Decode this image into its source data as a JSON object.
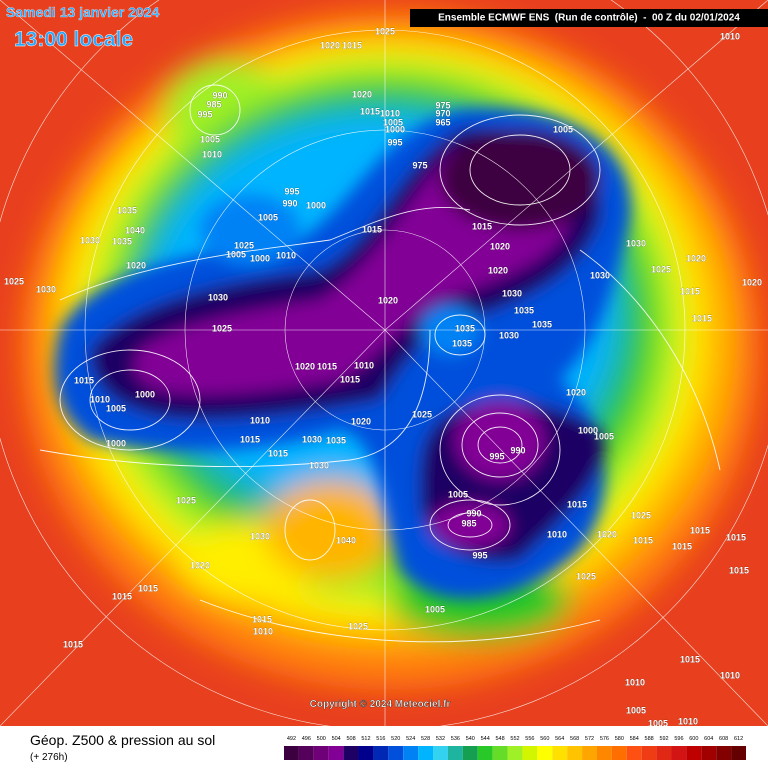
{
  "header": {
    "date": "Samedi 13 janvier 2024",
    "time": "13:00 locale",
    "model": "Ensemble ECMWF ENS  (Run de contrôle)  -  00 Z du 02/01/2024"
  },
  "copyright": "Copyright © 2024 Meteociel.fr",
  "footer": {
    "title": "Géop. Z500 & pression au sol",
    "lead": "(+ 276h)"
  },
  "legend": {
    "levels": [
      492,
      496,
      500,
      504,
      508,
      512,
      516,
      520,
      524,
      528,
      532,
      536,
      540,
      544,
      548,
      552,
      556,
      560,
      564,
      568,
      572,
      576,
      580,
      584,
      588,
      592,
      596,
      600,
      604,
      608,
      612
    ],
    "colors": [
      "#3c0040",
      "#55005a",
      "#700078",
      "#820096",
      "#1e0064",
      "#00008c",
      "#0028b4",
      "#0050dc",
      "#0082f5",
      "#00b4ff",
      "#32d2f0",
      "#1eb4a0",
      "#14a050",
      "#28c828",
      "#64dc28",
      "#a0f028",
      "#d2f500",
      "#ffff00",
      "#ffe100",
      "#ffc300",
      "#ffa500",
      "#ff8700",
      "#ff6e00",
      "#ff5014",
      "#f03c14",
      "#e12814",
      "#d21414",
      "#be0000",
      "#a00000",
      "#820000",
      "#640000"
    ]
  },
  "pressure_labels": [
    1025,
    1020,
    1015,
    1010,
    990,
    985,
    995,
    1005,
    1010,
    1020,
    1015,
    1010,
    1005,
    1000,
    995,
    975,
    970,
    965,
    1005,
    975,
    995,
    990,
    1000,
    1005,
    1015,
    1035,
    1040,
    1030,
    1035,
    1025,
    1005,
    1000,
    1010,
    1020,
    1025,
    1030,
    1030,
    1025,
    1020,
    1030,
    1035,
    1035,
    1035,
    1035,
    1030,
    1015,
    1020,
    1020,
    1030,
    1020,
    1030,
    1025,
    1015,
    1015,
    1020,
    1015,
    1010,
    1005,
    1000,
    1000,
    1020,
    1015,
    1015,
    1010,
    1020,
    1025,
    1010,
    1015,
    1030,
    1035,
    1015,
    1030,
    1020,
    1000,
    1005,
    995,
    990,
    1005,
    990,
    985,
    995,
    1015,
    1010,
    1020,
    1025,
    1015,
    1015,
    1015,
    1015,
    1015,
    1025,
    1030,
    1040,
    1020,
    1015,
    1015,
    1025,
    1015,
    1010,
    1025,
    1005,
    1015,
    1015,
    1010,
    1010,
    1005,
    1005,
    1010
  ]
}
